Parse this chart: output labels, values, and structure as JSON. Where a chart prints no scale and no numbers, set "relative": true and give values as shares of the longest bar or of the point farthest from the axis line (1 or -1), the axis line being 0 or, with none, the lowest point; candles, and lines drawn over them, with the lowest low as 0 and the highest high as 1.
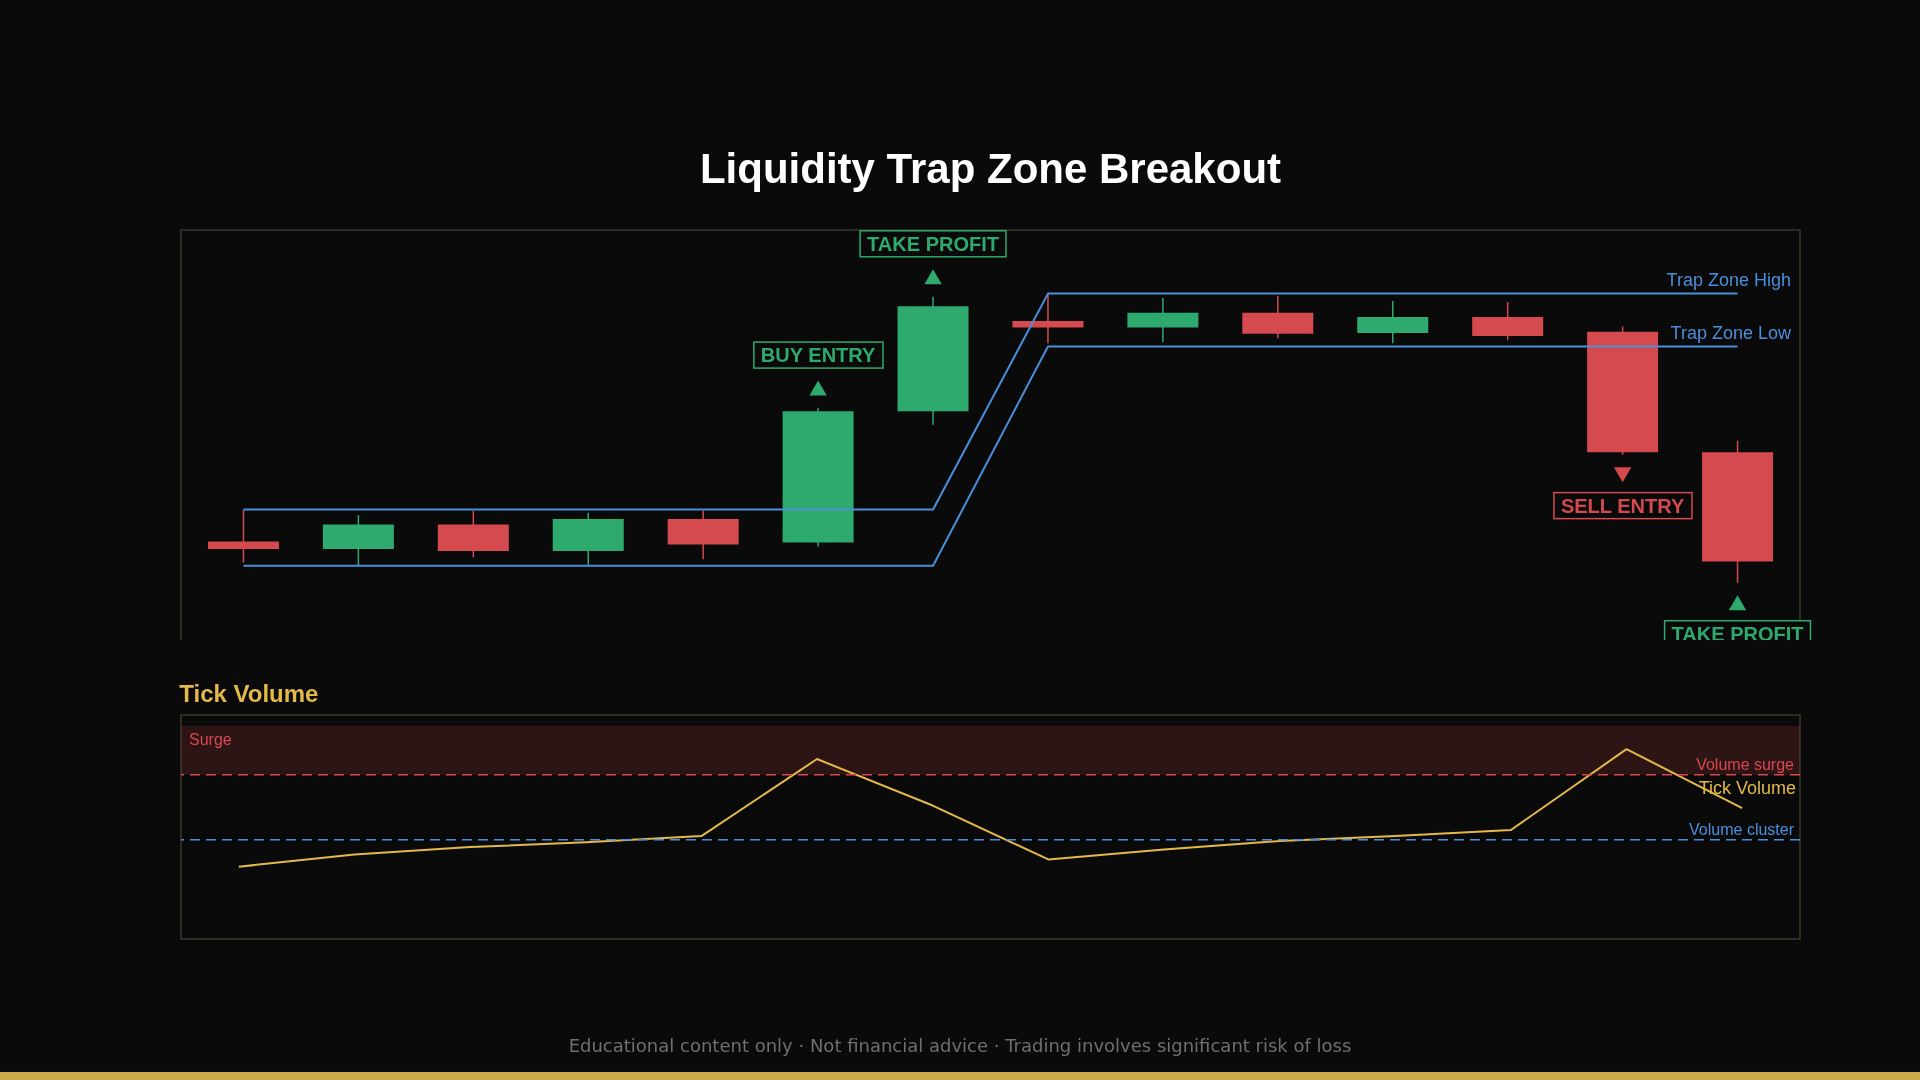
{
  "chart_data": [
    {
      "type": "candlestick",
      "title": "Liquidity Trap Zone Breakout",
      "relative": true,
      "categories": [
        null,
        null,
        null,
        null,
        null,
        null,
        null,
        null,
        null,
        null,
        null,
        null,
        null,
        null
      ],
      "ohlc": [
        [
          0.143,
          0.253,
          0.07,
          0.117
        ],
        [
          0.117,
          0.234,
          0.059,
          0.201
        ],
        [
          0.201,
          0.249,
          0.088,
          0.11
        ],
        [
          0.11,
          0.242,
          0.062,
          0.22
        ],
        [
          0.22,
          0.249,
          0.081,
          0.132
        ],
        [
          0.139,
          0.604,
          0.125,
          0.593
        ],
        [
          0.593,
          0.989,
          0.546,
          0.956
        ],
        [
          0.905,
          1,
          0.828,
          0.883
        ],
        [
          0.883,
          0.985,
          0.832,
          0.934
        ],
        [
          0.934,
          0.993,
          0.846,
          0.861
        ],
        [
          0.864,
          0.974,
          0.828,
          0.919
        ],
        [
          0.919,
          0.971,
          0.839,
          0.853
        ],
        [
          0.868,
          0.886,
          0.443,
          0.451
        ],
        [
          0.451,
          0.491,
          0,
          0.073
        ]
      ],
      "colors": [
        "#d44a4e",
        "#2eaa6e",
        "#d44a4e",
        "#2eaa6e",
        "#d44a4e",
        "#2eaa6e",
        "#2eaa6e",
        "#d44a4e",
        "#2eaa6e",
        "#d44a4e",
        "#2eaa6e",
        "#d44a4e",
        "#d44a4e",
        "#d44a4e"
      ],
      "series": [
        {
          "name": "Trap Zone High",
          "type": "line",
          "color": "#4a8fdd",
          "values": [
            0.253,
            0.253,
            0.253,
            0.253,
            0.253,
            0.253,
            0.253,
            1,
            1,
            1,
            1,
            1,
            1,
            1
          ]
        },
        {
          "name": "Trap Zone Low",
          "type": "line",
          "color": "#4a8fdd",
          "values": [
            0.059,
            0.059,
            0.059,
            0.059,
            0.059,
            0.059,
            0.059,
            0.817,
            0.817,
            0.817,
            0.817,
            0.817,
            0.817,
            0.817
          ]
        }
      ],
      "annotations": [
        {
          "text": "BUY ENTRY",
          "y": 0.604
        },
        {
          "text": "TAKE PROFIT",
          "y": 0.989
        },
        {
          "text": "SELL ENTRY",
          "y": 0.443
        },
        {
          "text": "TAKE PROFIT",
          "y": 0
        }
      ]
    },
    {
      "type": "line",
      "title": "Tick Volume",
      "relative": true,
      "categories": [
        null,
        null,
        null,
        null,
        null,
        null,
        null,
        null,
        null,
        null,
        null,
        null,
        null,
        null
      ],
      "series": [
        {
          "name": "Tick Volume",
          "color": "#e3b94a",
          "values": [
            0.381,
            0.445,
            0.484,
            0.51,
            0.542,
            0.948,
            0.703,
            0.419,
            0.471,
            0.516,
            0.542,
            0.574,
            1,
            0.69
          ]
        }
      ],
      "ref_lines": [
        {
          "axis": "y",
          "value": 0.865,
          "label": "Volume surge",
          "color": "#d9474f",
          "line_style": "dashed"
        },
        {
          "axis": "y",
          "value": 0.523,
          "label": "Volume cluster",
          "color": "#4a8fdd",
          "line_style": "dashed"
        }
      ],
      "bands": [
        {
          "axis": "y",
          "from": 0.865,
          "to": 1.123,
          "label": "Surge",
          "color": "#d9474f"
        }
      ],
      "annotations": [
        "Educational content only  ·  Not financial advice  ·  Trading involves significant risk of loss"
      ]
    }
  ]
}
